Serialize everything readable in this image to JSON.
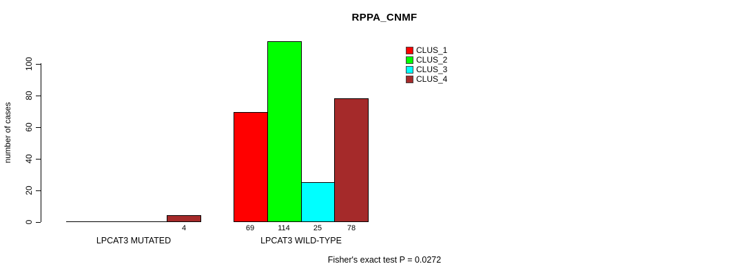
{
  "chart_data": {
    "type": "bar",
    "title": "RPPA_CNMF",
    "ylabel": "number of cases",
    "xlabel": "",
    "ylim": [
      0,
      115
    ],
    "yticks": [
      0,
      20,
      40,
      60,
      80,
      100
    ],
    "grid": false,
    "legend_position": "top-right",
    "series": [
      {
        "name": "CLUS_1",
        "color": "#ff0000"
      },
      {
        "name": "CLUS_2",
        "color": "#00ff00"
      },
      {
        "name": "CLUS_3",
        "color": "#00ffff"
      },
      {
        "name": "CLUS_4",
        "color": "#a52a2a"
      }
    ],
    "groups": [
      {
        "label": "LPCAT3 MUTATED",
        "values": [
          0,
          0,
          0,
          4
        ],
        "bar_labels": [
          "",
          "",
          "",
          "4"
        ]
      },
      {
        "label": "LPCAT3 WILD-TYPE",
        "values": [
          69,
          114,
          25,
          78
        ],
        "bar_labels": [
          "69",
          "114",
          "25",
          "78"
        ]
      }
    ],
    "annotation": "Fisher's exact test P = 0.0272",
    "colors": {
      "axis": "#000000",
      "text": "#000000",
      "background": "#ffffff"
    }
  }
}
